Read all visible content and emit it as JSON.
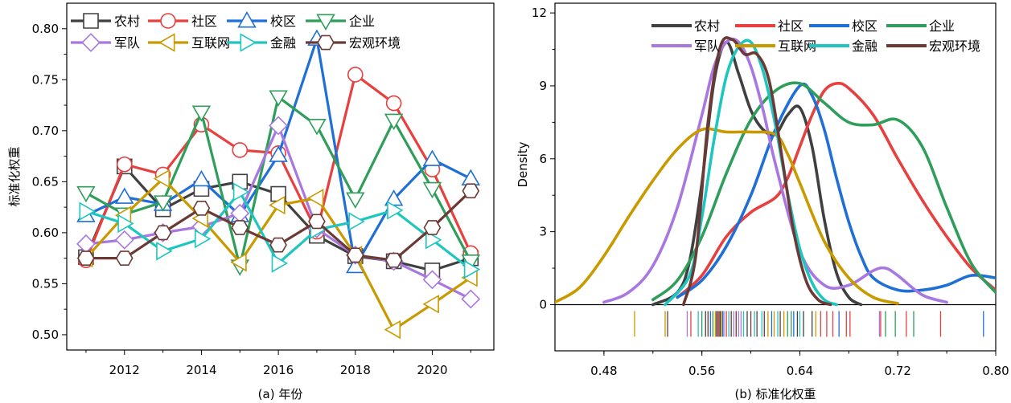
{
  "chart_data": [
    {
      "type": "line",
      "caption": "(a) 年份",
      "ylabel": "标准化权重",
      "xlabel": "",
      "xlim": [
        2010.5,
        2021.6
      ],
      "ylim": [
        0.485,
        0.825
      ],
      "xticks": [
        2012,
        2014,
        2016,
        2018,
        2020
      ],
      "yticks": [
        0.5,
        0.55,
        0.6,
        0.65,
        0.7,
        0.75,
        0.8
      ],
      "ytick_labels": [
        "0.50",
        "0.55",
        "0.60",
        "0.65",
        "0.70",
        "0.75",
        "0.80"
      ],
      "x": [
        2011,
        2012,
        2013,
        2014,
        2015,
        2016,
        2017,
        2018,
        2019,
        2020,
        2021
      ],
      "legend_position": "top-left",
      "series": [
        {
          "name": "农村",
          "color": "#404040",
          "marker": "square",
          "values": [
            0.576,
            0.665,
            0.623,
            0.643,
            0.65,
            0.638,
            0.597,
            0.577,
            0.572,
            0.563,
            0.575
          ]
        },
        {
          "name": "社区",
          "color": "#e83f3f",
          "marker": "circle",
          "values": [
            0.573,
            0.667,
            0.657,
            0.706,
            0.681,
            0.678,
            0.601,
            0.755,
            0.727,
            0.662,
            0.58
          ]
        },
        {
          "name": "校区",
          "color": "#1f6fd6",
          "marker": "triangle-up",
          "values": [
            0.617,
            0.635,
            0.628,
            0.652,
            0.617,
            0.676,
            0.79,
            0.567,
            0.633,
            0.672,
            0.653
          ]
        },
        {
          "name": "企业",
          "color": "#2e9e5a",
          "marker": "triangle-down",
          "values": [
            0.639,
            0.618,
            0.63,
            0.718,
            0.567,
            0.733,
            0.705,
            0.633,
            0.71,
            0.643,
            0.572
          ]
        },
        {
          "name": "军队",
          "color": "#a878e0",
          "marker": "diamond",
          "values": [
            0.589,
            0.593,
            0.6,
            0.606,
            0.619,
            0.705,
            0.604,
            0.578,
            0.572,
            0.554,
            0.535
          ]
        },
        {
          "name": "互联网",
          "color": "#c99a00",
          "marker": "triangle-left",
          "values": [
            0.575,
            0.617,
            0.653,
            0.614,
            0.571,
            0.627,
            0.634,
            0.578,
            0.505,
            0.53,
            0.556
          ]
        },
        {
          "name": "金融",
          "color": "#1fc6c0",
          "marker": "triangle-right",
          "values": [
            0.621,
            0.609,
            0.582,
            0.594,
            0.64,
            0.57,
            0.603,
            0.611,
            0.622,
            0.593,
            0.564
          ]
        },
        {
          "name": "宏观环境",
          "color": "#6b3a36",
          "marker": "hexagon",
          "values": [
            0.575,
            0.575,
            0.6,
            0.624,
            0.605,
            0.588,
            0.611,
            0.578,
            0.573,
            0.605,
            0.641
          ]
        }
      ]
    },
    {
      "type": "line",
      "caption": "(b) 标准化权重",
      "ylabel": "Density",
      "xlabel": "",
      "xlim": [
        0.44,
        0.8
      ],
      "ylim": [
        -1.9,
        12.4
      ],
      "xticks": [
        0.48,
        0.56,
        0.64,
        0.72,
        0.8
      ],
      "xtick_labels": [
        "0.48",
        "0.56",
        "0.64",
        "0.72",
        "0.80"
      ],
      "yticks": [
        0,
        3,
        6,
        9,
        12
      ],
      "ytick_labels": [
        "0",
        "3",
        "6",
        "9",
        "12"
      ],
      "legend_position": "top-right",
      "series": [
        {
          "name": "农村",
          "color": "#404040",
          "x": [
            0.52,
            0.54,
            0.55,
            0.56,
            0.57,
            0.58,
            0.59,
            0.6,
            0.61,
            0.62,
            0.63,
            0.64,
            0.65,
            0.66,
            0.67,
            0.68,
            0.69
          ],
          "values": [
            0,
            0.5,
            1.8,
            5.0,
            9.2,
            10.8,
            9.5,
            8.0,
            7.2,
            7.0,
            7.8,
            8.1,
            6.5,
            3.5,
            1.3,
            0.3,
            0
          ]
        },
        {
          "name": "社区",
          "color": "#e83f3f",
          "x": [
            0.54,
            0.56,
            0.58,
            0.6,
            0.62,
            0.63,
            0.64,
            0.65,
            0.66,
            0.67,
            0.68,
            0.7,
            0.72,
            0.74,
            0.76,
            0.78,
            0.8
          ],
          "values": [
            0.3,
            1.2,
            2.8,
            3.8,
            4.4,
            5.2,
            6.5,
            7.8,
            8.8,
            9.1,
            8.9,
            7.8,
            6.0,
            4.3,
            2.8,
            1.5,
            0.6
          ]
        },
        {
          "name": "校区",
          "color": "#1f6fd6",
          "x": [
            0.54,
            0.56,
            0.58,
            0.6,
            0.62,
            0.64,
            0.65,
            0.66,
            0.67,
            0.68,
            0.69,
            0.7,
            0.72,
            0.74,
            0.76,
            0.78,
            0.8
          ],
          "values": [
            0.3,
            1.0,
            2.4,
            4.5,
            7.2,
            9.0,
            8.6,
            7.2,
            5.2,
            3.4,
            2.0,
            1.1,
            0.6,
            0.6,
            0.8,
            1.2,
            1.1
          ]
        },
        {
          "name": "企业",
          "color": "#2e9e5a",
          "x": [
            0.52,
            0.54,
            0.56,
            0.58,
            0.6,
            0.62,
            0.64,
            0.66,
            0.68,
            0.7,
            0.72,
            0.74,
            0.76,
            0.78,
            0.8
          ],
          "values": [
            0.2,
            1.0,
            2.8,
            5.4,
            7.6,
            8.8,
            9.1,
            8.3,
            7.5,
            7.4,
            7.6,
            6.5,
            4.0,
            1.7,
            0.5
          ]
        },
        {
          "name": "军队",
          "color": "#a878e0",
          "x": [
            0.48,
            0.5,
            0.52,
            0.54,
            0.56,
            0.57,
            0.58,
            0.59,
            0.6,
            0.61,
            0.62,
            0.64,
            0.66,
            0.68,
            0.7,
            0.71,
            0.72,
            0.74,
            0.76
          ],
          "values": [
            0.1,
            0.5,
            1.6,
            4.0,
            7.8,
            9.8,
            10.8,
            10.8,
            9.8,
            8.0,
            5.8,
            2.2,
            0.8,
            0.8,
            1.4,
            1.5,
            1.2,
            0.4,
            0.1
          ]
        },
        {
          "name": "互联网",
          "color": "#c99a00",
          "x": [
            0.44,
            0.46,
            0.48,
            0.5,
            0.52,
            0.54,
            0.56,
            0.58,
            0.6,
            0.62,
            0.63,
            0.64,
            0.66,
            0.68,
            0.7,
            0.72
          ],
          "values": [
            0.1,
            0.7,
            2.0,
            3.6,
            5.1,
            6.4,
            7.2,
            7.1,
            7.1,
            7.0,
            6.2,
            5.0,
            2.6,
            1.1,
            0.3,
            0.05
          ]
        },
        {
          "name": "金融",
          "color": "#1fc6c0",
          "x": [
            0.53,
            0.55,
            0.56,
            0.57,
            0.58,
            0.59,
            0.6,
            0.61,
            0.62,
            0.63,
            0.64,
            0.65,
            0.66,
            0.67
          ],
          "values": [
            0,
            1.2,
            3.6,
            6.8,
            9.4,
            10.6,
            10.8,
            9.6,
            7.4,
            4.6,
            2.3,
            0.9,
            0.2,
            0
          ]
        },
        {
          "name": "宏观环境",
          "color": "#6b3a36",
          "x": [
            0.545,
            0.555,
            0.565,
            0.575,
            0.585,
            0.595,
            0.605,
            0.615,
            0.625,
            0.635,
            0.645,
            0.655,
            0.665
          ],
          "values": [
            0,
            2.0,
            7.5,
            10.6,
            10.9,
            10.3,
            10.3,
            9.2,
            6.2,
            3.0,
            1.0,
            0.2,
            0
          ]
        }
      ],
      "rug": {
        "values": [
          0.505,
          0.53,
          0.532,
          0.548,
          0.551,
          0.557,
          0.56,
          0.563,
          0.565,
          0.567,
          0.569,
          0.571,
          0.572,
          0.573,
          0.574,
          0.575,
          0.576,
          0.577,
          0.578,
          0.58,
          0.582,
          0.584,
          0.586,
          0.588,
          0.59,
          0.592,
          0.594,
          0.597,
          0.6,
          0.603,
          0.605,
          0.609,
          0.611,
          0.614,
          0.617,
          0.619,
          0.622,
          0.624,
          0.627,
          0.63,
          0.633,
          0.635,
          0.638,
          0.64,
          0.643,
          0.65,
          0.653,
          0.657,
          0.662,
          0.667,
          0.672,
          0.678,
          0.681,
          0.705,
          0.706,
          0.71,
          0.718,
          0.727,
          0.733,
          0.755,
          0.79
        ],
        "colors": [
          "#c99a00",
          "#c99a00",
          "#6b3a36",
          "#a878e0",
          "#e83f3f",
          "#1fc6c0",
          "#2e9e5a",
          "#404040",
          "#6b3a36",
          "#1f6fd6",
          "#2e9e5a",
          "#c99a00",
          "#404040",
          "#e83f3f",
          "#6b3a36",
          "#404040",
          "#c99a00",
          "#1f6fd6",
          "#a878e0",
          "#e83f3f",
          "#1fc6c0",
          "#6b3a36",
          "#a878e0",
          "#6b3a36",
          "#a878e0",
          "#a878e0",
          "#1fc6c0",
          "#404040",
          "#6b3a36",
          "#1fc6c0",
          "#6b3a36",
          "#1fc6c0",
          "#6b3a36",
          "#c99a00",
          "#1f6fd6",
          "#c99a00",
          "#1fc6c0",
          "#6b3a36",
          "#c99a00",
          "#2e9e5a",
          "#2e9e5a",
          "#1f6fd6",
          "#404040",
          "#1fc6c0",
          "#404040",
          "#404040",
          "#c99a00",
          "#e83f3f",
          "#e83f3f",
          "#e83f3f",
          "#1f6fd6",
          "#e83f3f",
          "#e83f3f",
          "#a878e0",
          "#e83f3f",
          "#2e9e5a",
          "#2e9e5a",
          "#e83f3f",
          "#2e9e5a",
          "#e83f3f",
          "#1f6fd6"
        ]
      }
    }
  ]
}
